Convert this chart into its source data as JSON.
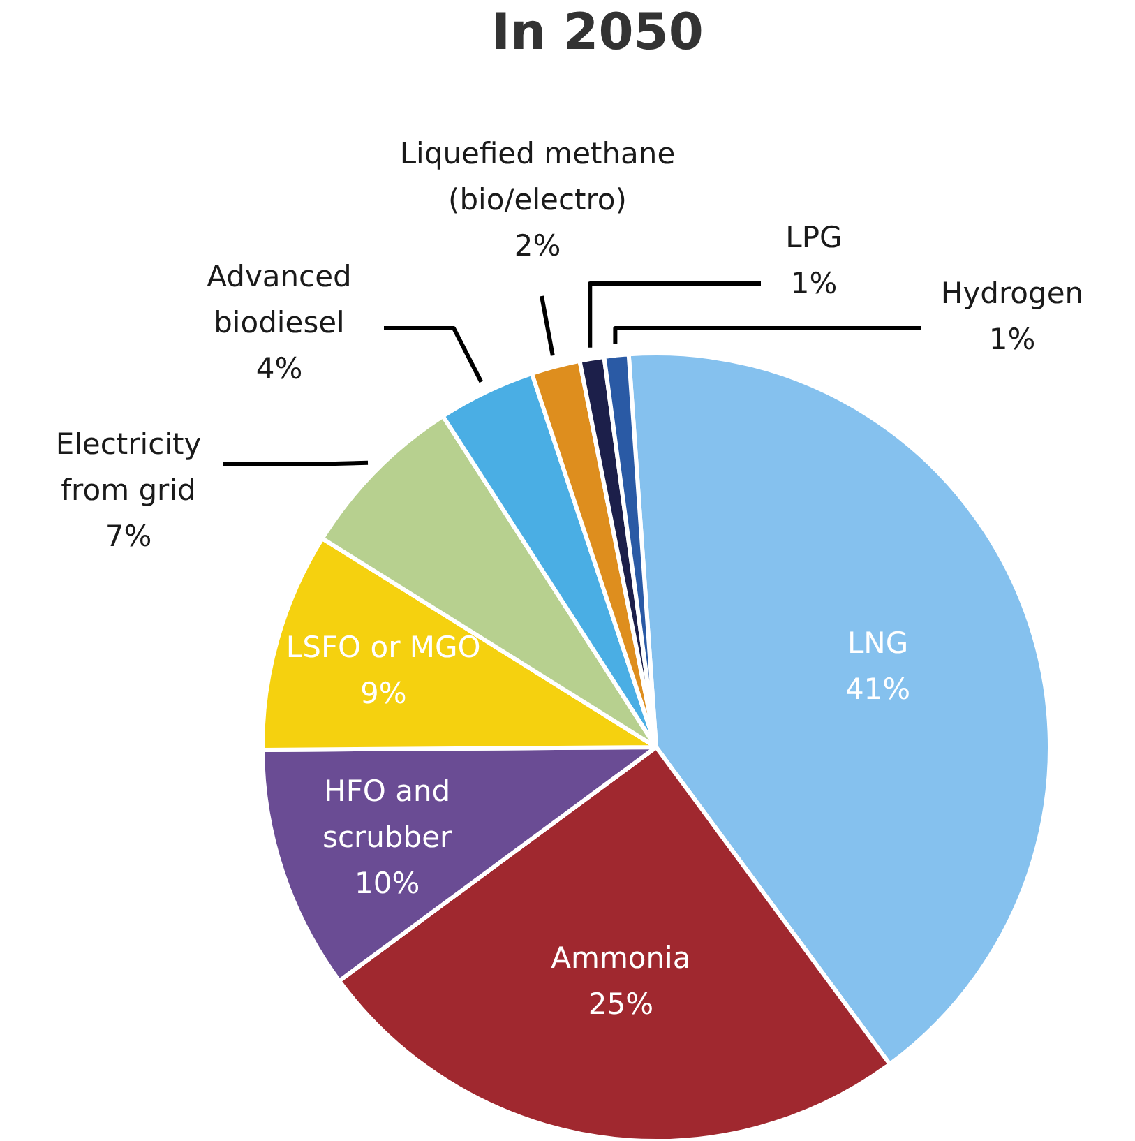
{
  "chart_data": {
    "type": "pie",
    "title": "In 2050",
    "categories": [
      "LNG",
      "Ammonia",
      "HFO and\nscrubber",
      "LSFO or MGO",
      "Electricity\nfrom grid",
      "Advanced\nbiodiesel",
      "Liquefied methane\n(bio/electro)",
      "LPG",
      "Hydrogen"
    ],
    "values": [
      41,
      25,
      10,
      9,
      7,
      4,
      2,
      1,
      1
    ],
    "value_labels": [
      "41%",
      "25%",
      "10%",
      "9%",
      "7%",
      "4%",
      "2%",
      "1%",
      "1%"
    ],
    "colors": [
      "#85c1ee",
      "#a0282f",
      "#6a4c94",
      "#f5d10f",
      "#b7d08f",
      "#4aaee4",
      "#de8e1e",
      "#1c1f4a",
      "#2a5aa5"
    ]
  }
}
